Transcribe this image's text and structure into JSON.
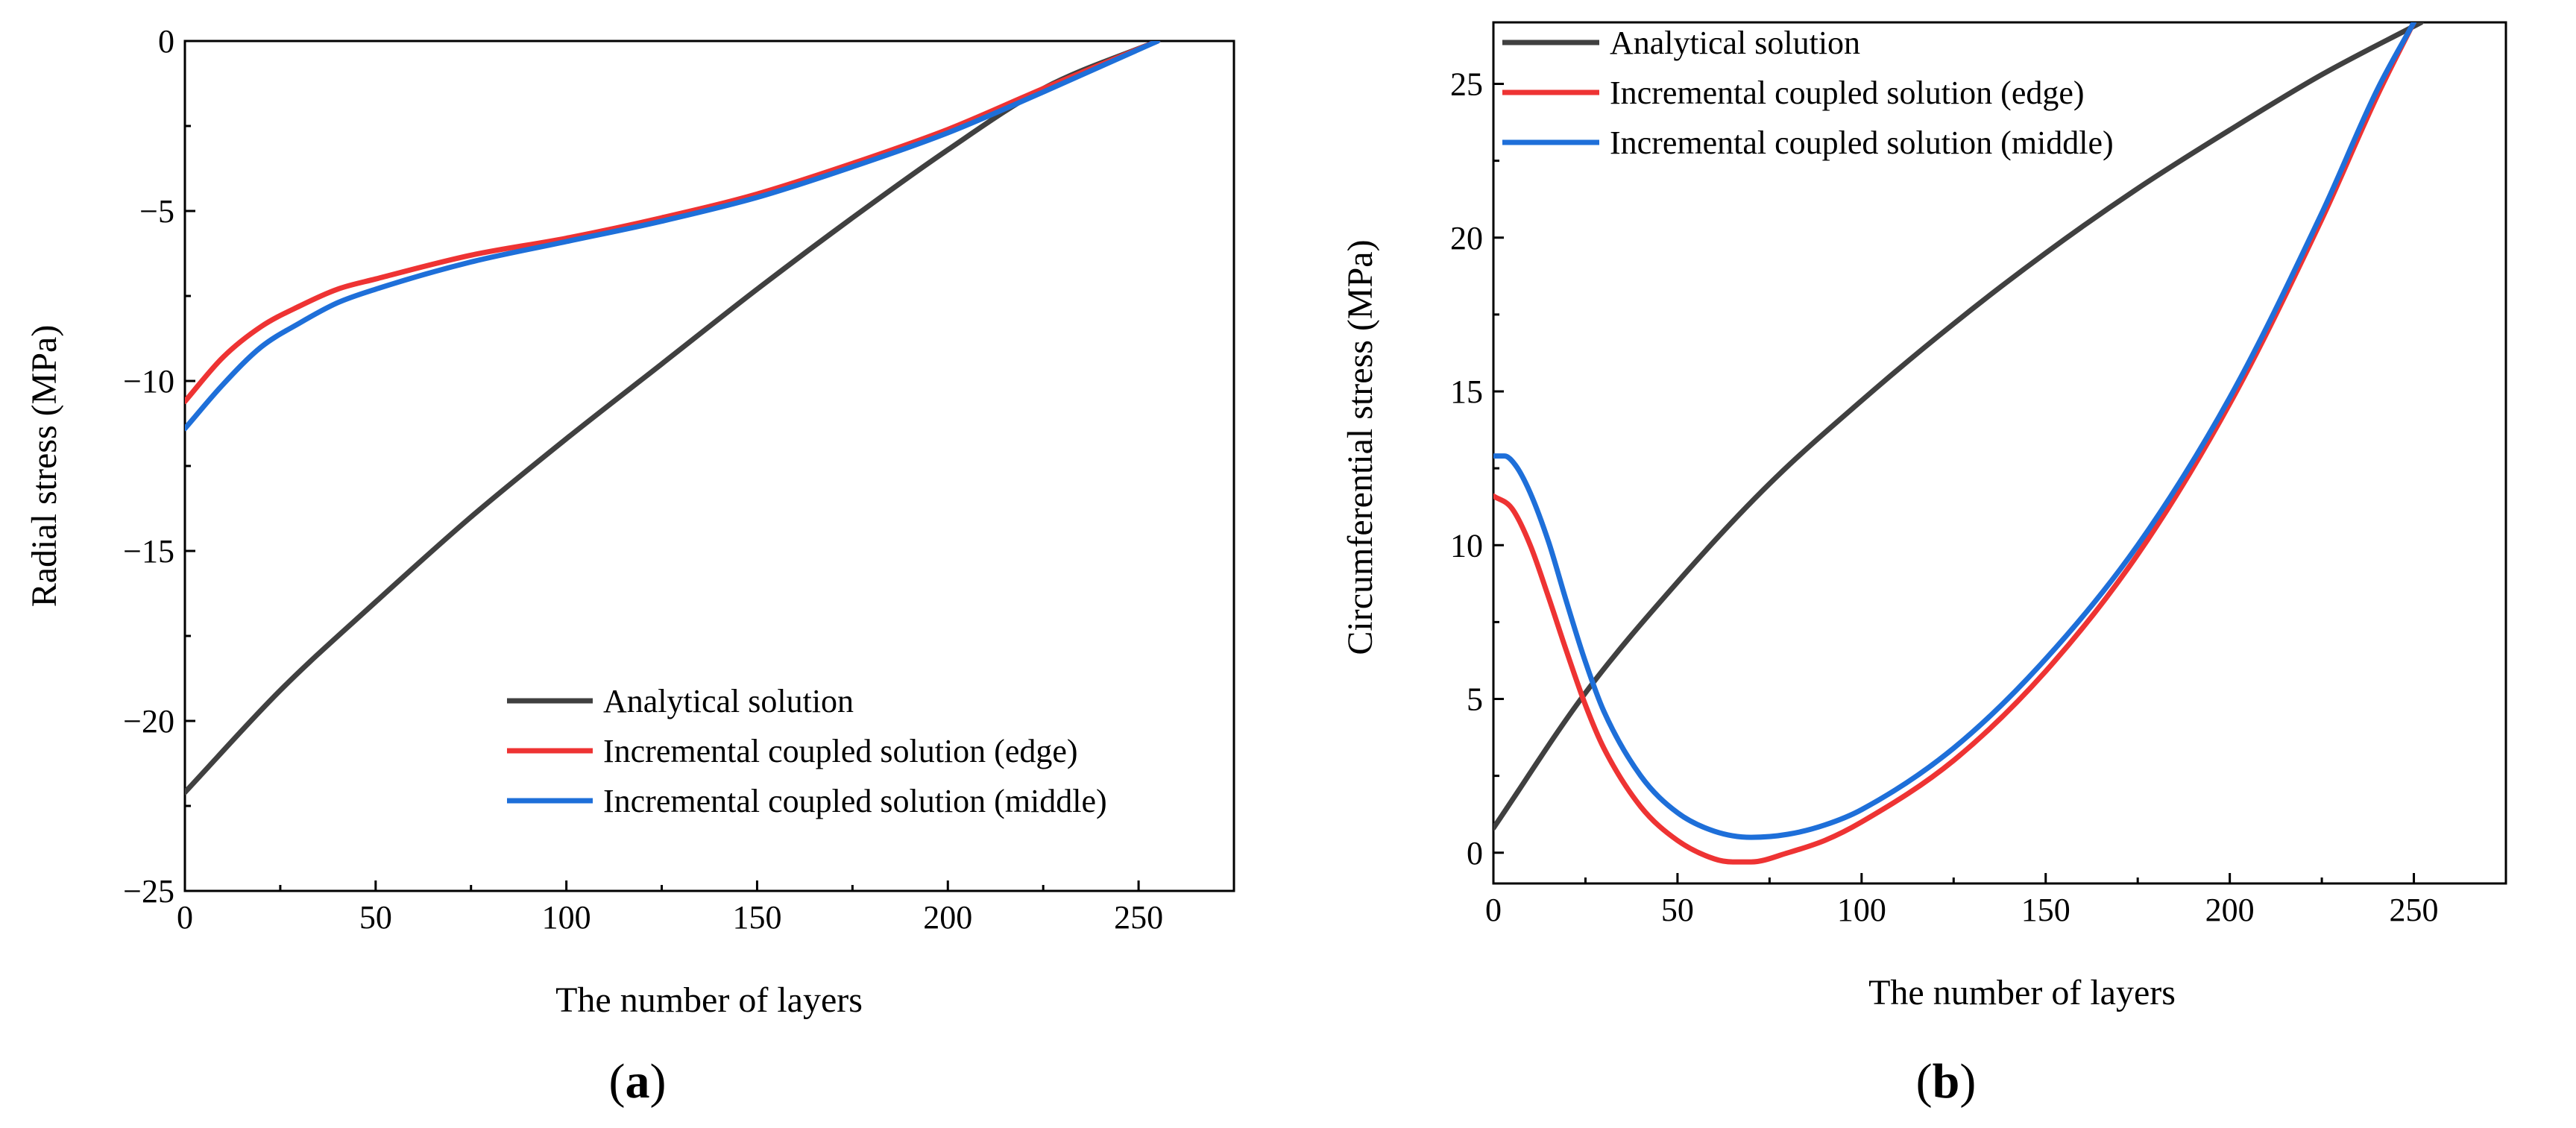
{
  "chart_data": [
    {
      "type": "line",
      "panel_label": "(a)",
      "panel_letter": "a",
      "xlabel": "The number of layers",
      "ylabel": "Radial stress (MPa)",
      "xlim": [
        0,
        275
      ],
      "ylim": [
        -25,
        0
      ],
      "xticks": [
        0,
        50,
        100,
        150,
        200,
        250
      ],
      "xtick_labels": [
        "0",
        "50",
        "100",
        "150",
        "200",
        "250"
      ],
      "yticks": [
        0,
        -5,
        -10,
        -15,
        -20,
        -25
      ],
      "ytick_labels": [
        "0",
        "−5",
        "−10",
        "−15",
        "−20",
        "−25"
      ],
      "legend_position": "bottom-right",
      "series": [
        {
          "name": "Analytical solution",
          "color": "#404040",
          "x": [
            0,
            25,
            50,
            75,
            100,
            125,
            150,
            175,
            200,
            225,
            255
          ],
          "y": [
            -22.1,
            -19.1,
            -16.5,
            -14.0,
            -11.7,
            -9.5,
            -7.3,
            -5.2,
            -3.2,
            -1.4,
            0
          ]
        },
        {
          "name": "Incremental coupled solution (edge)",
          "color": "#ee3333",
          "x": [
            0,
            10,
            20,
            30,
            40,
            50,
            75,
            100,
            125,
            150,
            175,
            200,
            225,
            255
          ],
          "y": [
            -10.6,
            -9.3,
            -8.4,
            -7.8,
            -7.3,
            -7.0,
            -6.3,
            -5.8,
            -5.2,
            -4.5,
            -3.6,
            -2.6,
            -1.4,
            0
          ]
        },
        {
          "name": "Incremental coupled solution (middle)",
          "color": "#1e6fd9",
          "x": [
            0,
            10,
            20,
            30,
            40,
            50,
            75,
            100,
            125,
            150,
            175,
            200,
            225,
            255
          ],
          "y": [
            -11.4,
            -10.1,
            -9.0,
            -8.3,
            -7.7,
            -7.3,
            -6.5,
            -5.9,
            -5.3,
            -4.6,
            -3.7,
            -2.7,
            -1.5,
            0
          ]
        }
      ]
    },
    {
      "type": "line",
      "panel_label": "(b)",
      "panel_letter": "b",
      "xlabel": "The number of layers",
      "ylabel": "Circumferential stress (MPa)",
      "xlim": [
        0,
        275
      ],
      "ylim": [
        -1,
        27
      ],
      "xticks": [
        0,
        50,
        100,
        150,
        200,
        250
      ],
      "xtick_labels": [
        "0",
        "50",
        "100",
        "150",
        "200",
        "250"
      ],
      "yticks": [
        0,
        5,
        10,
        15,
        20,
        25
      ],
      "ytick_labels": [
        "0",
        "5",
        "10",
        "15",
        "20",
        "25"
      ],
      "legend_position": "top-left",
      "series": [
        {
          "name": "Analytical solution",
          "color": "#404040",
          "x": [
            0,
            25,
            50,
            75,
            100,
            125,
            150,
            175,
            200,
            225,
            252
          ],
          "y": [
            0.8,
            5.2,
            8.8,
            12.0,
            14.7,
            17.2,
            19.5,
            21.6,
            23.5,
            25.3,
            27.0
          ]
        },
        {
          "name": "Incremental coupled solution (edge)",
          "color": "#ee3333",
          "x": [
            0,
            5,
            10,
            15,
            20,
            25,
            30,
            40,
            50,
            60,
            65,
            70,
            80,
            90,
            100,
            125,
            150,
            175,
            200,
            225,
            240,
            250
          ],
          "y": [
            11.6,
            11.2,
            10.0,
            8.3,
            6.5,
            4.8,
            3.4,
            1.5,
            0.4,
            -0.2,
            -0.3,
            -0.3,
            0.0,
            0.4,
            1.0,
            3.0,
            5.9,
            9.7,
            14.6,
            20.6,
            24.6,
            27.0
          ]
        },
        {
          "name": "Incremental coupled solution (middle)",
          "color": "#1e6fd9",
          "x": [
            0,
            3,
            6,
            10,
            15,
            20,
            25,
            30,
            40,
            50,
            60,
            70,
            80,
            90,
            100,
            125,
            150,
            175,
            200,
            225,
            240,
            250
          ],
          "y": [
            12.9,
            12.9,
            12.6,
            11.7,
            10.1,
            8.1,
            6.2,
            4.6,
            2.5,
            1.3,
            0.7,
            0.5,
            0.6,
            0.9,
            1.4,
            3.4,
            6.3,
            10.0,
            14.8,
            20.8,
            24.8,
            27.0
          ]
        }
      ]
    }
  ]
}
